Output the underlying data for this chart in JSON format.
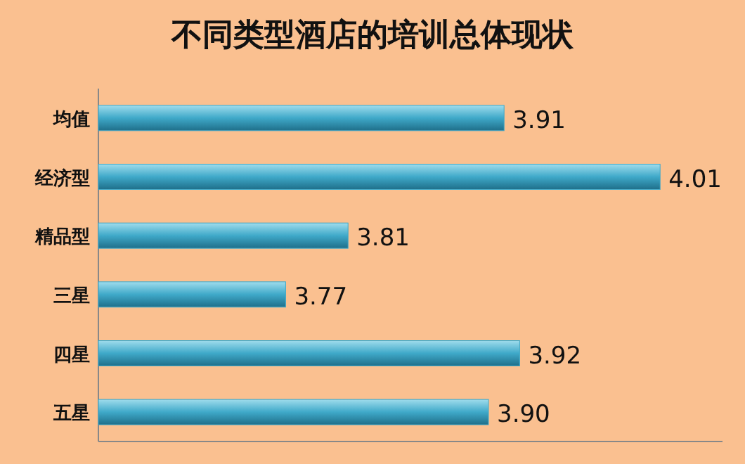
{
  "chart_data": {
    "type": "bar",
    "orientation": "horizontal",
    "title": "不同类型酒店的培训总体现状",
    "categories": [
      "均值",
      "经济型",
      "精品型",
      "三星",
      "四星",
      "五星"
    ],
    "values": [
      3.91,
      4.01,
      3.81,
      3.77,
      3.92,
      3.9
    ],
    "value_labels": [
      "3.91",
      "4.01",
      "3.81",
      "3.77",
      "3.92",
      "3.90"
    ],
    "color": "#3fa9c9",
    "xlim": [
      3.65,
      4.05
    ]
  }
}
